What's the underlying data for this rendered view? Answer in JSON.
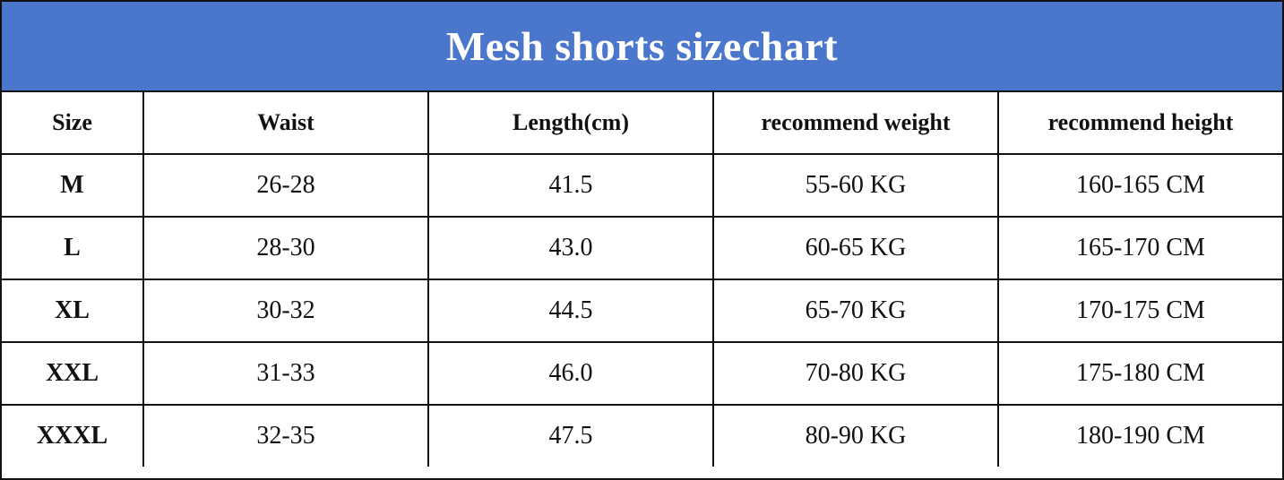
{
  "header": {
    "title": "Mesh shorts sizechart"
  },
  "table": {
    "columns": [
      "Size",
      "Waist",
      "Length(cm)",
      "recommend weight",
      "recommend height"
    ],
    "rows": [
      [
        "M",
        "26-28",
        "41.5",
        "55-60 KG",
        "160-165 CM"
      ],
      [
        "L",
        "28-30",
        "43.0",
        "60-65 KG",
        "165-170 CM"
      ],
      [
        "XL",
        "30-32",
        "44.5",
        "65-70 KG",
        "170-175 CM"
      ],
      [
        "XXL",
        "31-33",
        "46.0",
        "70-80 KG",
        "175-180 CM"
      ],
      [
        "XXXL",
        "32-35",
        "47.5",
        "80-90 KG",
        "180-190 CM"
      ]
    ]
  }
}
